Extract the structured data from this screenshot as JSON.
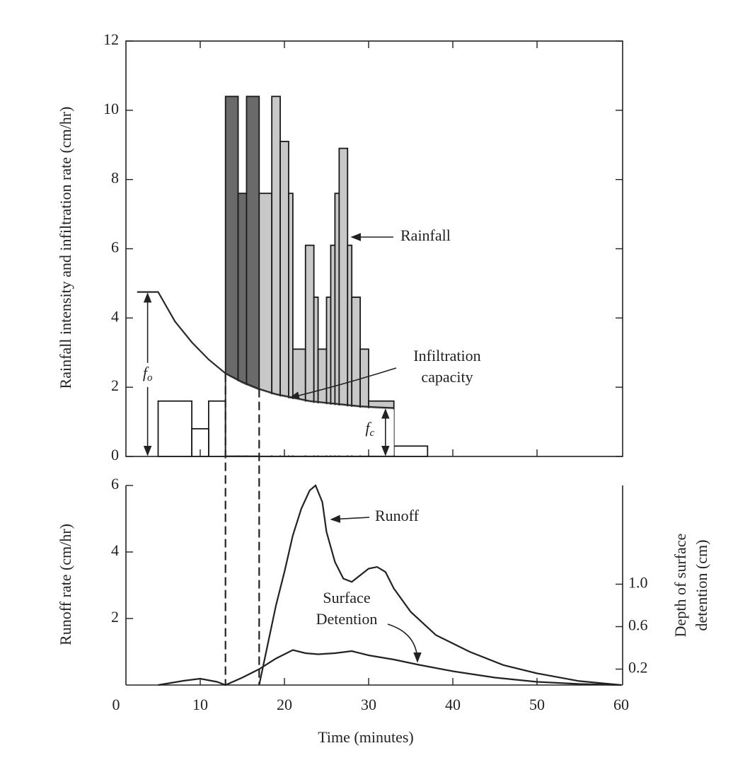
{
  "chart_data": [
    {
      "type": "histogram",
      "ylabel": "Rainfall intensity and infiltration rate (cm/hr)",
      "xlim": [
        0,
        60
      ],
      "ylim": [
        0,
        12
      ],
      "yticks": [
        0,
        2,
        4,
        6,
        8,
        10,
        12
      ],
      "series": [
        {
          "name": "Rainfall",
          "bins": [
            5,
            9,
            11,
            13,
            14.5,
            15.5,
            17,
            18.5,
            19.5,
            20.5,
            21,
            22.5,
            23.5,
            24,
            25,
            25.5,
            26,
            26.5,
            27.5,
            28,
            29,
            30,
            33,
            37
          ],
          "values": [
            1.6,
            0.8,
            1.6,
            10.4,
            7.6,
            10.4,
            7.6,
            10.4,
            9.1,
            7.6,
            3.1,
            6.1,
            4.6,
            3.1,
            4.6,
            6.1,
            7.6,
            8.9,
            6.1,
            4.6,
            3.1,
            1.6,
            0.3
          ],
          "color": "#1a1a1a",
          "fills": [
            "#6a6a6a",
            "#c8c8c8"
          ]
        },
        {
          "name": "Infiltration capacity",
          "x": [
            2.5,
            5,
            7,
            9,
            11,
            13,
            15,
            17,
            19,
            21,
            23,
            25,
            27,
            29,
            31,
            33
          ],
          "values": [
            4.75,
            4.75,
            3.9,
            3.3,
            2.8,
            2.4,
            2.15,
            1.95,
            1.8,
            1.7,
            1.6,
            1.55,
            1.5,
            1.45,
            1.42,
            1.4
          ],
          "color": "#2a2a2a"
        }
      ],
      "vlines": [
        13,
        17
      ],
      "annotations": [
        {
          "text": "f",
          "sub": "o"
        },
        {
          "text": "f",
          "sub": "c"
        }
      ]
    },
    {
      "type": "line",
      "xlabel": "Time (minutes)",
      "ylabel": "Runoff rate (cm/hr)",
      "y2label": "Depth of surface detention (cm)",
      "xlim": [
        0,
        60
      ],
      "xticks": [
        0,
        10,
        20,
        30,
        40,
        50,
        60
      ],
      "ylim": [
        0,
        6
      ],
      "yticks": [
        2,
        4,
        6
      ],
      "y2lim": [
        0.05,
        1.93
      ],
      "y2ticks": [
        0.2,
        0.6,
        {
          "value": 1,
          "label": "1.0"
        }
      ],
      "series": [
        {
          "name": "Runoff",
          "x": [
            17,
            18,
            19,
            20,
            21,
            22,
            23,
            23.7,
            24.5,
            25,
            26,
            27,
            28,
            29,
            30,
            31,
            32,
            33,
            35,
            38,
            42,
            46,
            50,
            55,
            60
          ],
          "values": [
            0,
            1.2,
            2.4,
            3.4,
            4.5,
            5.3,
            5.85,
            6,
            5.5,
            4.6,
            3.7,
            3.2,
            3.1,
            3.3,
            3.5,
            3.55,
            3.4,
            2.9,
            2.2,
            1.5,
            1,
            0.6,
            0.35,
            0.12,
            0
          ],
          "color": "#222222"
        },
        {
          "name": "Surface Detention",
          "axis": "y2",
          "x": [
            5,
            8,
            10,
            12,
            13,
            15,
            17,
            19,
            21,
            22.5,
            24,
            26,
            28,
            30,
            33,
            36,
            40,
            45,
            50,
            55,
            60
          ],
          "values": [
            0.05,
            0.09,
            0.11,
            0.08,
            0.05,
            0.12,
            0.2,
            0.3,
            0.38,
            0.35,
            0.34,
            0.35,
            0.37,
            0.33,
            0.29,
            0.24,
            0.18,
            0.12,
            0.08,
            0.06,
            0.05
          ],
          "color": "#222222"
        }
      ]
    }
  ]
}
